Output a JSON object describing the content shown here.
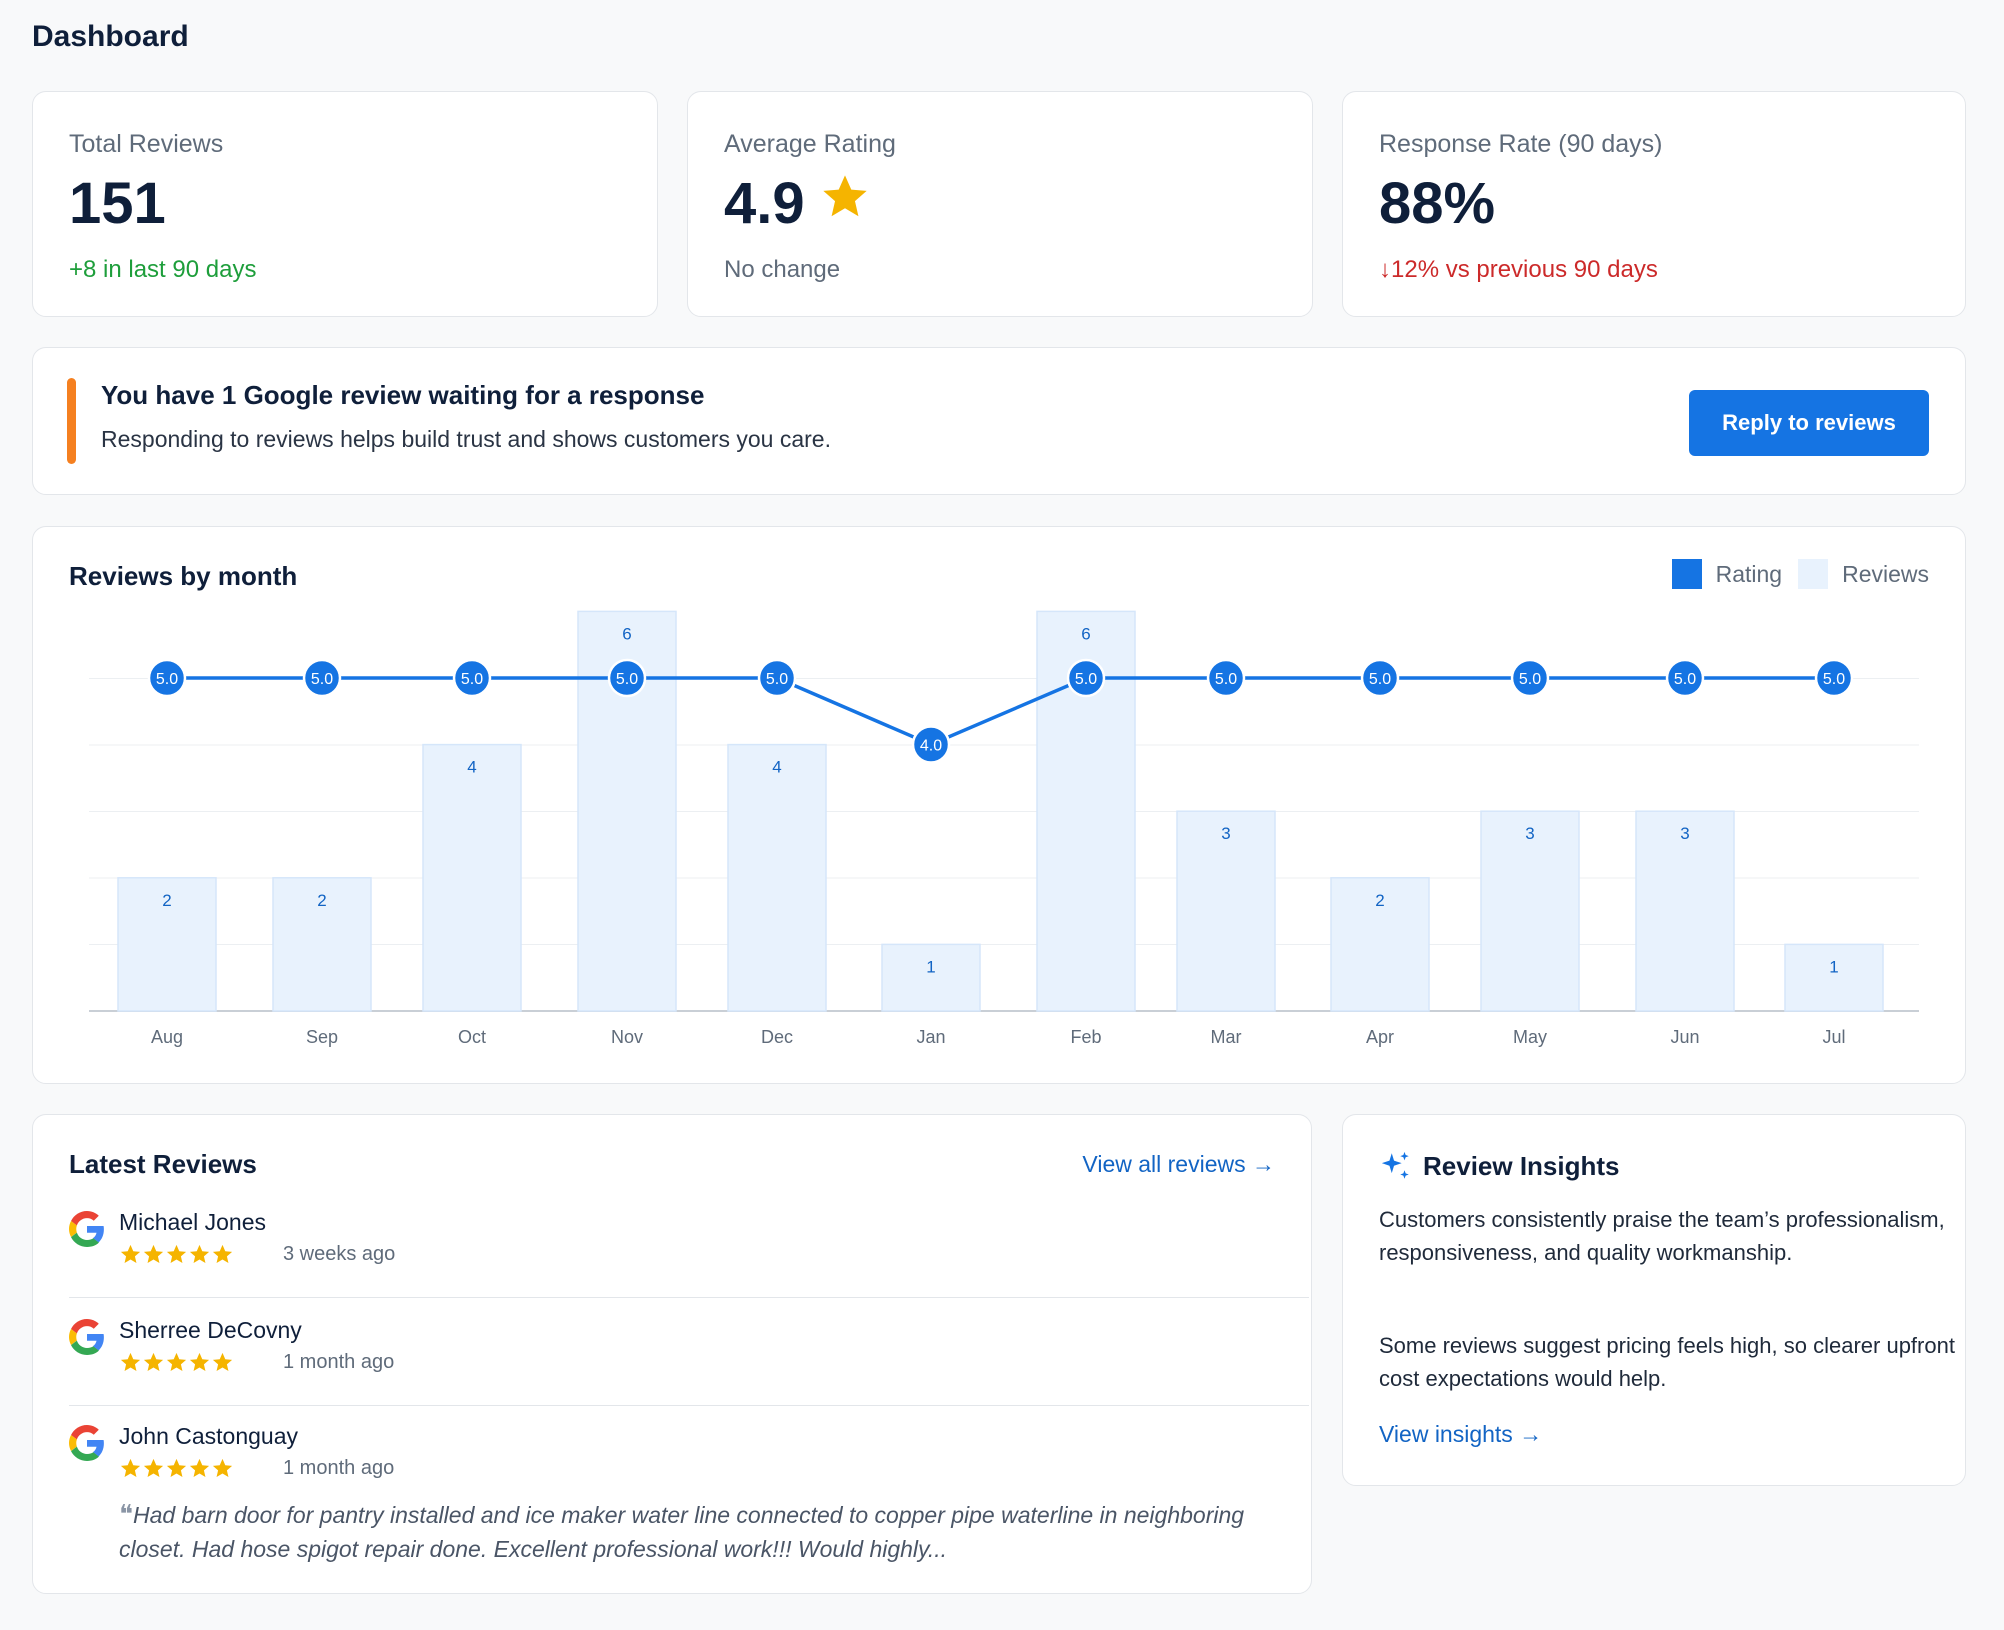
{
  "page": {
    "title": "Dashboard"
  },
  "stats": [
    {
      "label": "Total Reviews",
      "value": "151",
      "sub": "+8 in last 90 days",
      "sub_color": "#1e9e3b"
    },
    {
      "label": "Average Rating",
      "value": "4.9",
      "sub": "No change",
      "sub_color": "#5f6b7a",
      "icon": "star-icon"
    },
    {
      "label": "Response Rate (90 days)",
      "value": "88%",
      "sub": "↓12% vs previous 90 days",
      "sub_color": "#cc2a2a"
    }
  ],
  "alert": {
    "title": "You have 1 Google review waiting for a response",
    "text": "Responding to reviews helps build trust and shows customers you care.",
    "button_label": "Reply to reviews",
    "accent_color": "#f58020"
  },
  "chart": {
    "title": "Reviews by month",
    "legend": {
      "rating": "Rating",
      "reviews": "Reviews"
    }
  },
  "chart_data": {
    "type": "bar",
    "categories": [
      "Aug",
      "Sep",
      "Oct",
      "Nov",
      "Dec",
      "Jan",
      "Feb",
      "Mar",
      "Apr",
      "May",
      "Jun",
      "Jul"
    ],
    "series": [
      {
        "name": "Reviews",
        "type": "bar",
        "values": [
          2,
          2,
          4,
          6,
          4,
          1,
          6,
          3,
          2,
          3,
          3,
          1
        ],
        "color": "#e8f2fd"
      },
      {
        "name": "Rating",
        "type": "line",
        "values": [
          5.0,
          5.0,
          5.0,
          5.0,
          5.0,
          4.0,
          5.0,
          5.0,
          5.0,
          5.0,
          5.0,
          5.0
        ],
        "color": "#1574e3"
      }
    ],
    "grid": true,
    "legend_position": "top-right"
  },
  "latest": {
    "title": "Latest Reviews",
    "view_all": "View all reviews →",
    "reviews": [
      {
        "name": "Michael Jones",
        "stars": 5,
        "when": "3 weeks ago",
        "source_icon": "google-icon"
      },
      {
        "name": "Sherree DeCovny",
        "stars": 5,
        "when": "1 month ago",
        "source_icon": "google-icon"
      },
      {
        "name": "John Castonguay",
        "stars": 5,
        "when": "1 month ago",
        "source_icon": "google-icon",
        "quote": "Had barn door for pantry installed and ice maker water line connected to copper pipe waterline in neighboring closet. Had hose spigot repair done. Excellent professional work!!! Would highly..."
      }
    ]
  },
  "insights": {
    "title": "Review Insights",
    "icon": "sparkle-icon",
    "p1": "Customers consistently praise the team’s professionalism, responsiveness, and quality workmanship.",
    "p2": "Some reviews suggest pricing feels high, so clearer upfront cost expectations would help.",
    "link": "View insights →"
  },
  "colors": {
    "primary": "#1574e3",
    "star": "#f5b400",
    "link": "#1264c4"
  }
}
